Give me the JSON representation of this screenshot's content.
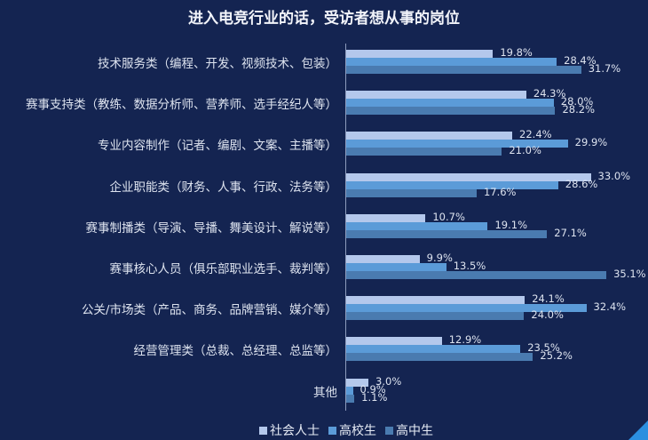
{
  "title": "进入电竞行业的话，受访者想从事的岗位",
  "colors": {
    "background": "#142451",
    "社会人士": "#b4c8ec",
    "高校生": "#5b9bd8",
    "高中生": "#4a7bb0",
    "accent_corner": "#2b8fe0"
  },
  "legend": [
    {
      "label": "社会人士",
      "color": "#b4c8ec"
    },
    {
      "label": "高校生",
      "color": "#5b9bd8"
    },
    {
      "label": "高中生",
      "color": "#4a7bb0"
    }
  ],
  "chart_data": {
    "type": "bar",
    "orientation": "horizontal",
    "title": "进入电竞行业的话，受访者想从事的岗位",
    "xlabel": "",
    "ylabel": "",
    "unit": "%",
    "grid": false,
    "legend_position": "bottom",
    "categories": [
      "技术服务类（编程、开发、视频技术、包装）",
      "赛事支持类（教练、数据分析师、营养师、选手经纪人等）",
      "专业内容制作（记者、编剧、文案、主播等）",
      "企业职能类（财务、人事、行政、法务等）",
      "赛事制播类（导演、导播、舞美设计、解说等）",
      "赛事核心人员（俱乐部职业选手、裁判等）",
      "公关/市场类（产品、商务、品牌营销、媒介等）",
      "经营管理类（总裁、总经理、总监等）",
      "其他"
    ],
    "series": [
      {
        "name": "社会人士",
        "values": [
          19.8,
          24.3,
          22.4,
          33.0,
          10.7,
          9.9,
          24.1,
          12.9,
          3.0
        ]
      },
      {
        "name": "高校生",
        "values": [
          28.4,
          28.0,
          29.9,
          28.6,
          19.1,
          13.5,
          32.4,
          23.5,
          0.9
        ]
      },
      {
        "name": "高中生",
        "values": [
          31.7,
          28.2,
          21.0,
          17.6,
          27.1,
          35.1,
          24.0,
          25.2,
          1.1
        ]
      }
    ],
    "labels": [
      [
        "19.8%",
        "28.4%",
        "31.7%"
      ],
      [
        "24.3%",
        "28.0%",
        "28.2%"
      ],
      [
        "22.4%",
        "29.9%",
        "21.0%"
      ],
      [
        "33.0%",
        "28.6%",
        "17.6%"
      ],
      [
        "10.7%",
        "19.1%",
        "27.1%"
      ],
      [
        "9.9%",
        "13.5%",
        "35.1%"
      ],
      [
        "24.1%",
        "32.4%",
        "24.0%"
      ],
      [
        "12.9%",
        "23.5%",
        "25.2%"
      ],
      [
        "3.0%",
        "0.9%",
        "1.1%"
      ]
    ]
  }
}
